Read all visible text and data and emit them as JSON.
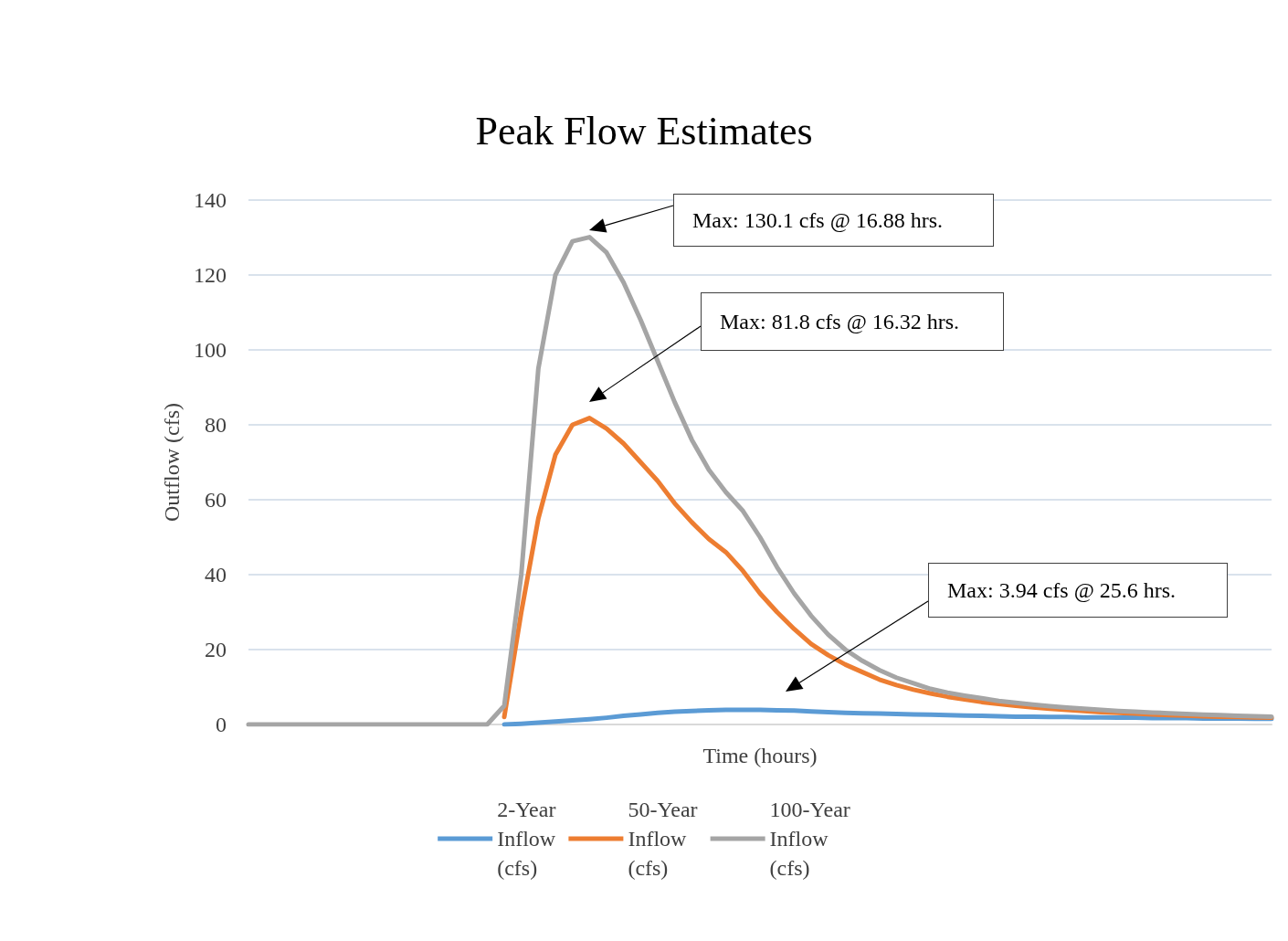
{
  "chart_data": {
    "type": "line",
    "title": "Peak Flow Estimates",
    "xlabel": "Time (hours)",
    "ylabel": "Outflow (cfs)",
    "categories": [
      null,
      null,
      null,
      null,
      null,
      null,
      null,
      null,
      null,
      null,
      null,
      null,
      null,
      null,
      null,
      null,
      null,
      null,
      null,
      null,
      null,
      null,
      null,
      null,
      null,
      null,
      null,
      null,
      null,
      null,
      null,
      null,
      null,
      null,
      null,
      null,
      null,
      null,
      null,
      null,
      null,
      null,
      null,
      null,
      null,
      null,
      null,
      null,
      null,
      null,
      null,
      null,
      null,
      null,
      null,
      null,
      null,
      null,
      null,
      null,
      null
    ],
    "series": [
      {
        "name": "2-Year Inflow (cfs)",
        "color": "#5b9bd5",
        "values": [
          null,
          null,
          null,
          null,
          null,
          null,
          null,
          null,
          null,
          null,
          null,
          null,
          null,
          null,
          null,
          0,
          0.2,
          0.5,
          0.8,
          1.1,
          1.4,
          1.8,
          2.3,
          2.7,
          3.1,
          3.4,
          3.6,
          3.8,
          3.9,
          3.9,
          3.9,
          3.8,
          3.7,
          3.5,
          3.3,
          3.1,
          3,
          2.9,
          2.8,
          2.7,
          2.6,
          2.5,
          2.4,
          2.3,
          2.2,
          2.1,
          2.1,
          2,
          2,
          1.9,
          1.9,
          1.8,
          1.8,
          1.7,
          1.7,
          1.7,
          1.6,
          1.6,
          1.6,
          1.5,
          1.5
        ]
      },
      {
        "name": "50-Year Inflow (cfs)",
        "color": "#ed7d31",
        "values": [
          null,
          null,
          null,
          null,
          null,
          null,
          null,
          null,
          null,
          null,
          null,
          null,
          null,
          null,
          null,
          2,
          30,
          55,
          72,
          80,
          81.8,
          79,
          75,
          70,
          65,
          59,
          54,
          49.5,
          46,
          41,
          35,
          30,
          25.5,
          21.5,
          18.5,
          16,
          14,
          12,
          10.5,
          9.3,
          8.3,
          7.4,
          6.7,
          6,
          5.5,
          5,
          4.6,
          4.2,
          3.9,
          3.6,
          3.3,
          3.1,
          2.9,
          2.7,
          2.5,
          2.4,
          2.2,
          2.1,
          2,
          1.9,
          1.8
        ]
      },
      {
        "name": "100-Year Inflow (cfs)",
        "color": "#a5a5a5",
        "values": [
          0,
          0,
          0,
          0,
          0,
          0,
          0,
          0,
          0,
          0,
          0,
          0,
          0,
          0,
          0,
          5,
          40,
          95,
          120,
          129,
          130.1,
          126,
          118,
          108,
          97,
          86,
          76,
          68,
          62,
          57,
          50,
          42,
          35,
          29,
          24,
          20,
          17,
          14.5,
          12.5,
          11,
          9.5,
          8.5,
          7.7,
          7,
          6.3,
          5.8,
          5.3,
          4.9,
          4.5,
          4.2,
          3.9,
          3.6,
          3.4,
          3.2,
          3,
          2.8,
          2.6,
          2.5,
          2.3,
          2.2,
          2.1
        ]
      }
    ],
    "ylim": [
      0,
      140
    ],
    "yticks": [
      0,
      20,
      40,
      60,
      80,
      100,
      120,
      140
    ],
    "grid": "y",
    "legend": "bottom",
    "tick_labels": "y",
    "marker": "none",
    "line_style": "solid",
    "annotations": [
      "Max: 130.1 cfs @ 16.88 hrs.",
      "Max: 81.8 cfs @ 16.32 hrs.",
      "Max: 3.94 cfs @ 25.6 hrs."
    ]
  }
}
